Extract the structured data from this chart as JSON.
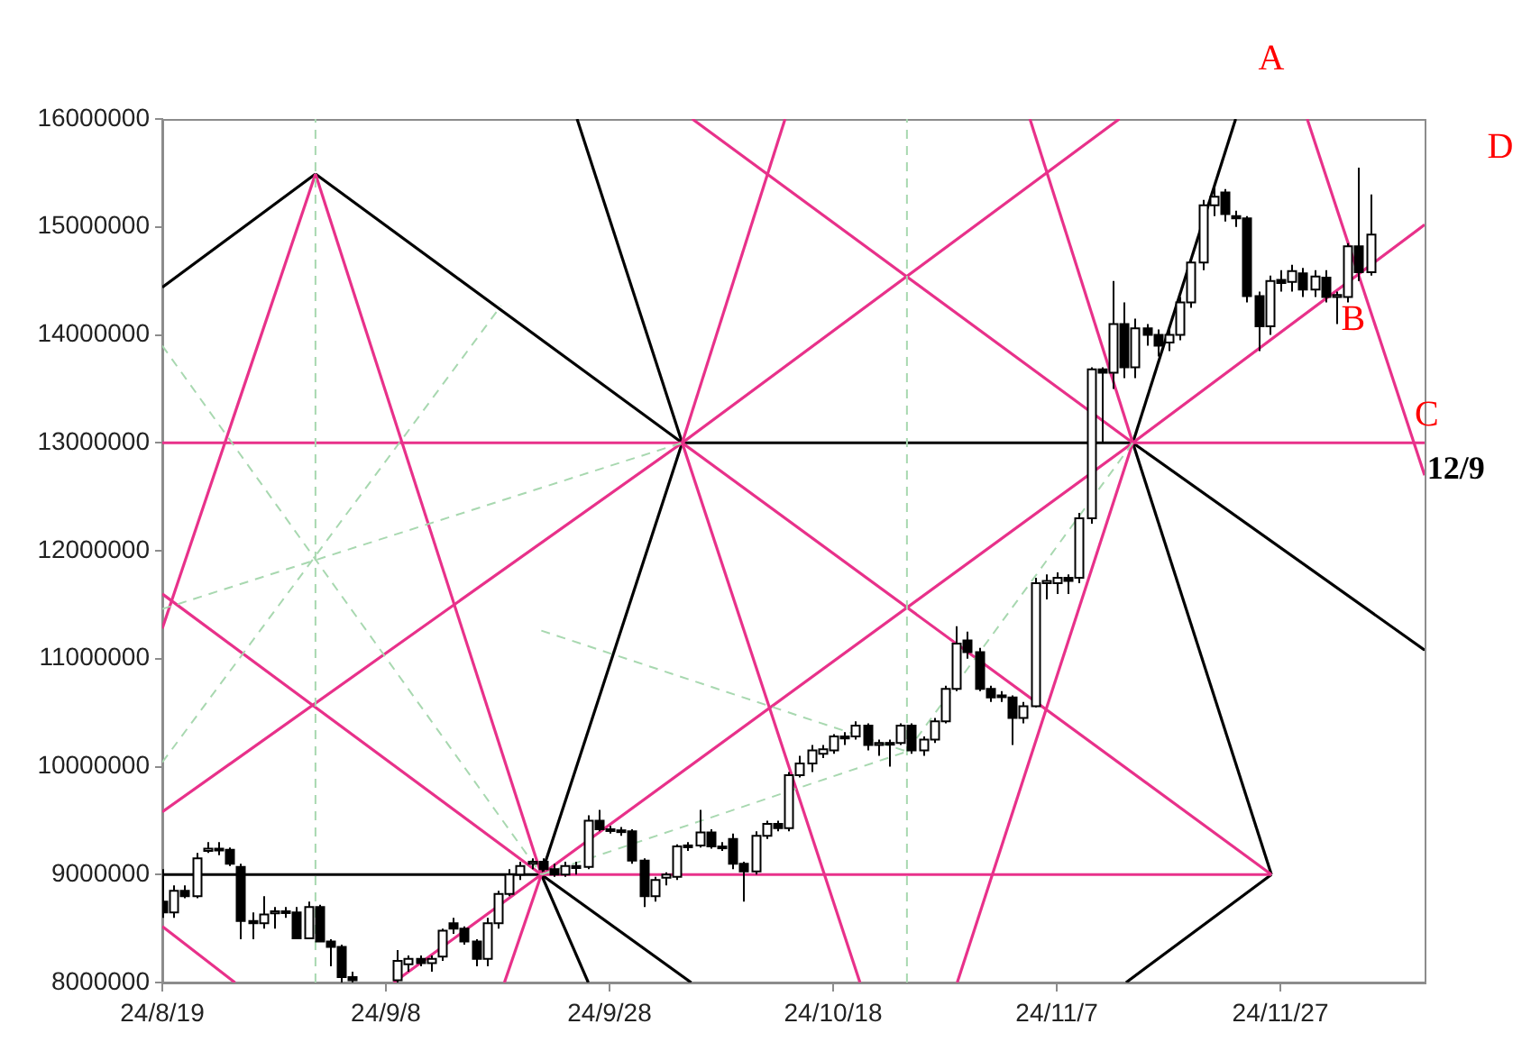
{
  "chart_data": {
    "type": "candlestick",
    "x": [
      "--08-19",
      "--08-20",
      "--08-21",
      "--08-22",
      "--08-23",
      "--08-24",
      "--08-25",
      "--08-26",
      "--08-27",
      "--08-28",
      "--08-29",
      "--08-30",
      "--08-31",
      "--09-01",
      "--09-02",
      "--09-03",
      "--09-04",
      "--09-05",
      "--09-09",
      "--09-10",
      "--09-11",
      "--09-12",
      "--09-13",
      "--09-14",
      "--09-15",
      "--09-16",
      "--09-17",
      "--09-18",
      "--09-19",
      "--09-20",
      "--09-21",
      "--09-22",
      "--09-23",
      "--09-24",
      "--09-25",
      "--09-26",
      "--09-27",
      "--09-28",
      "--09-29",
      "--09-30",
      "--10-01",
      "--10-02",
      "--10-03",
      "--10-04",
      "--10-05",
      "--10-06",
      "--10-07",
      "--10-08",
      "--10-09",
      "--10-10",
      "--10-11",
      "--10-12",
      "--10-13",
      "--10-14",
      "--10-15",
      "--10-16",
      "--10-17",
      "--10-18",
      "--10-19",
      "--10-20",
      "--10-21",
      "--10-22",
      "--10-23",
      "--10-24",
      "--10-25",
      "--10-26",
      "--10-27",
      "--10-28",
      "--10-29",
      "--10-30",
      "--10-31",
      "--11-01",
      "--11-02",
      "--11-03",
      "--11-04",
      "--11-05",
      "--11-06",
      "--11-07",
      "--11-08",
      "--11-09",
      "--11-10",
      "--11-11",
      "--11-12",
      "--11-13",
      "--11-14",
      "--11-15",
      "--11-16",
      "--11-17",
      "--11-18",
      "--11-19",
      "--11-20",
      "--11-21",
      "--11-22",
      "--11-23",
      "--11-24",
      "--11-25",
      "--11-26",
      "--11-27",
      "--11-28",
      "--11-29",
      "--11-30",
      "--12-01",
      "--12-02",
      "--12-03",
      "--12-04",
      "--12-05"
    ],
    "ohlc": [
      [
        8750000,
        9050000,
        8600000,
        8650000
      ],
      [
        8650000,
        8900000,
        8600000,
        8850000
      ],
      [
        8850000,
        8900000,
        8780000,
        8800000
      ],
      [
        8800000,
        9200000,
        8780000,
        9150000
      ],
      [
        9220000,
        9300000,
        9200000,
        9240000
      ],
      [
        9240000,
        9300000,
        9180000,
        9230000
      ],
      [
        9230000,
        9250000,
        9080000,
        9100000
      ],
      [
        9070000,
        9100000,
        8400000,
        8570000
      ],
      [
        8570000,
        8650000,
        8400000,
        8550000
      ],
      [
        8550000,
        8800000,
        8500000,
        8630000
      ],
      [
        8640000,
        8700000,
        8500000,
        8660000
      ],
      [
        8660000,
        8700000,
        8600000,
        8650000
      ],
      [
        8650000,
        8700000,
        8400000,
        8410000
      ],
      [
        8410000,
        8750000,
        8400000,
        8700000
      ],
      [
        8700000,
        8720000,
        8380000,
        8380000
      ],
      [
        8380000,
        8400000,
        8150000,
        8330000
      ],
      [
        8330000,
        8350000,
        8000000,
        8050000
      ],
      [
        8050000,
        8100000,
        8000000,
        8020000
      ],
      [
        8020000,
        8300000,
        8000000,
        8200000
      ],
      [
        8170000,
        8250000,
        8100000,
        8220000
      ],
      [
        8220000,
        8250000,
        8150000,
        8180000
      ],
      [
        8180000,
        8250000,
        8100000,
        8220000
      ],
      [
        8240000,
        8500000,
        8200000,
        8480000
      ],
      [
        8550000,
        8600000,
        8450000,
        8500000
      ],
      [
        8500000,
        8520000,
        8350000,
        8380000
      ],
      [
        8380000,
        8400000,
        8150000,
        8220000
      ],
      [
        8220000,
        8600000,
        8150000,
        8550000
      ],
      [
        8550000,
        8850000,
        8500000,
        8820000
      ],
      [
        8820000,
        9050000,
        8800000,
        9000000
      ],
      [
        9000000,
        9120000,
        8950000,
        9080000
      ],
      [
        9100000,
        9150000,
        9050000,
        9120000
      ],
      [
        9120000,
        9150000,
        9030000,
        9050000
      ],
      [
        9050000,
        9100000,
        8980000,
        9000000
      ],
      [
        9000000,
        9120000,
        8980000,
        9080000
      ],
      [
        9080000,
        9120000,
        9000000,
        9060000
      ],
      [
        9070000,
        9550000,
        9050000,
        9500000
      ],
      [
        9500000,
        9600000,
        9400000,
        9420000
      ],
      [
        9420000,
        9450000,
        9380000,
        9420000
      ],
      [
        9410000,
        9440000,
        9360000,
        9400000
      ],
      [
        9400000,
        9420000,
        9100000,
        9130000
      ],
      [
        9130000,
        9150000,
        8700000,
        8800000
      ],
      [
        8800000,
        8980000,
        8750000,
        8950000
      ],
      [
        8970000,
        9020000,
        8900000,
        9000000
      ],
      [
        8980000,
        9280000,
        8950000,
        9260000
      ],
      [
        9260000,
        9300000,
        9220000,
        9270000
      ],
      [
        9270000,
        9600000,
        9250000,
        9390000
      ],
      [
        9390000,
        9420000,
        9240000,
        9260000
      ],
      [
        9260000,
        9300000,
        9220000,
        9260000
      ],
      [
        9330000,
        9380000,
        9050000,
        9100000
      ],
      [
        9100000,
        9120000,
        8750000,
        9030000
      ],
      [
        9030000,
        9400000,
        9000000,
        9360000
      ],
      [
        9360000,
        9500000,
        9330000,
        9470000
      ],
      [
        9470000,
        9500000,
        9400000,
        9430000
      ],
      [
        9430000,
        9950000,
        9400000,
        9920000
      ],
      [
        9920000,
        10100000,
        9900000,
        10030000
      ],
      [
        10030000,
        10200000,
        9950000,
        10150000
      ],
      [
        10120000,
        10200000,
        10080000,
        10160000
      ],
      [
        10150000,
        10300000,
        10120000,
        10280000
      ],
      [
        10280000,
        10320000,
        10200000,
        10260000
      ],
      [
        10280000,
        10420000,
        10250000,
        10380000
      ],
      [
        10380000,
        10400000,
        10150000,
        10200000
      ],
      [
        10200000,
        10250000,
        10100000,
        10220000
      ],
      [
        10220000,
        10250000,
        10000000,
        10220000
      ],
      [
        10220000,
        10400000,
        10200000,
        10380000
      ],
      [
        10380000,
        10400000,
        10120000,
        10150000
      ],
      [
        10150000,
        10280000,
        10100000,
        10250000
      ],
      [
        10250000,
        10450000,
        10220000,
        10420000
      ],
      [
        10420000,
        10750000,
        10400000,
        10720000
      ],
      [
        10720000,
        11300000,
        10700000,
        11140000
      ],
      [
        11170000,
        11250000,
        11000000,
        11060000
      ],
      [
        11060000,
        11100000,
        10700000,
        10720000
      ],
      [
        10720000,
        10750000,
        10600000,
        10640000
      ],
      [
        10660000,
        10700000,
        10600000,
        10650000
      ],
      [
        10640000,
        10660000,
        10200000,
        10450000
      ],
      [
        10450000,
        10600000,
        10400000,
        10560000
      ],
      [
        10560000,
        11750000,
        10550000,
        11700000
      ],
      [
        11700000,
        11780000,
        11550000,
        11720000
      ],
      [
        11700000,
        11800000,
        11600000,
        11750000
      ],
      [
        11750000,
        11780000,
        11600000,
        11720000
      ],
      [
        11750000,
        12350000,
        11700000,
        12300000
      ],
      [
        12300000,
        13700000,
        12250000,
        13680000
      ],
      [
        13680000,
        13700000,
        13000000,
        13650000
      ],
      [
        13650000,
        14500000,
        13500000,
        14100000
      ],
      [
        14100000,
        14300000,
        13600000,
        13700000
      ],
      [
        13700000,
        14150000,
        13600000,
        14060000
      ],
      [
        14060000,
        14100000,
        13900000,
        14000000
      ],
      [
        14000000,
        14050000,
        13800000,
        13900000
      ],
      [
        13930000,
        14050000,
        13850000,
        14000000
      ],
      [
        14000000,
        14350000,
        13950000,
        14300000
      ],
      [
        14300000,
        14700000,
        14250000,
        14670000
      ],
      [
        14670000,
        15250000,
        14600000,
        15200000
      ],
      [
        15200000,
        15400000,
        15100000,
        15280000
      ],
      [
        15320000,
        15350000,
        15050000,
        15120000
      ],
      [
        15100000,
        15150000,
        15000000,
        15080000
      ],
      [
        15080000,
        15100000,
        14300000,
        14360000
      ],
      [
        14360000,
        14400000,
        13850000,
        14080000
      ],
      [
        14080000,
        14550000,
        14000000,
        14500000
      ],
      [
        14510000,
        14600000,
        14400000,
        14480000
      ],
      [
        14490000,
        14650000,
        14400000,
        14590000
      ],
      [
        14570000,
        14620000,
        14350000,
        14420000
      ],
      [
        14420000,
        14600000,
        14350000,
        14540000
      ],
      [
        14530000,
        14600000,
        14300000,
        14350000
      ],
      [
        14350000,
        14400000,
        14100000,
        14370000
      ],
      [
        14350000,
        14850000,
        14300000,
        14820000
      ],
      [
        14820000,
        15550000,
        14500000,
        14580000
      ],
      [
        14580000,
        15300000,
        14550000,
        14930000
      ]
    ],
    "xlim": [
      "--08-19",
      "--12-09T21:36"
    ],
    "ylim": [
      8000000,
      16000000
    ],
    "xticks": [
      {
        "value": "--08-19",
        "label": "24/8/19"
      },
      {
        "value": "--09-08",
        "label": "24/9/8"
      },
      {
        "value": "--09-28",
        "label": "24/9/28"
      },
      {
        "value": "--10-18",
        "label": "24/10/18"
      },
      {
        "value": "--11-07",
        "label": "24/11/7"
      },
      {
        "value": "--11-27",
        "label": "24/11/27"
      }
    ],
    "yticks": [
      8000000,
      9000000,
      10000000,
      11000000,
      12000000,
      13000000,
      14000000,
      15000000,
      16000000
    ],
    "series": [
      {
        "type": "line",
        "color": "#a8d8b0",
        "line_style": "dashed",
        "x": [
          "--09-01T16:48",
          "--09-01T16:48"
        ],
        "values": [
          8000000,
          16000000
        ]
      },
      {
        "type": "line",
        "color": "#a8d8b0",
        "line_style": "dashed",
        "x": [
          "--10-24T14:24",
          "--10-24T14:24"
        ],
        "values": [
          8000000,
          16000000
        ]
      },
      {
        "type": "line",
        "color": "#a8d8b0",
        "line_style": "dashed",
        "x": [
          "--08-19",
          "--10-04T12:00"
        ],
        "values": [
          11460000,
          13000000
        ]
      },
      {
        "type": "line",
        "color": "#a8d8b0",
        "line_style": "dashed",
        "x": [
          "--08-19",
          "--09-21T21:36"
        ],
        "values": [
          13900000,
          9000000
        ]
      },
      {
        "type": "line",
        "color": "#a8d8b0",
        "line_style": "dashed",
        "x": [
          "--08-19",
          "--09-18T07:12"
        ],
        "values": [
          10040000,
          14270000
        ]
      },
      {
        "type": "line",
        "color": "#a8d8b0",
        "line_style": "dashed",
        "x": [
          "--09-21T21:36",
          "--10-24T14:24"
        ],
        "values": [
          11260000,
          10140000
        ]
      },
      {
        "type": "line",
        "color": "#a8d8b0",
        "line_style": "dashed",
        "x": [
          "--09-21T21:36",
          "--10-24T14:24"
        ],
        "values": [
          9000000,
          10140000
        ]
      },
      {
        "type": "line",
        "color": "#a8d8b0",
        "line_style": "dashed",
        "x": [
          "--10-24T14:24",
          "--11-13T19:12"
        ],
        "values": [
          10140000,
          13000000
        ]
      },
      {
        "type": "line",
        "color": "#e8318a",
        "x": [
          "--08-19",
          "--09-01T16:48"
        ],
        "values": [
          11280000,
          15490000
        ]
      },
      {
        "type": "line",
        "color": "#e8318a",
        "x": [
          "--09-01T16:48",
          "--09-21T21:36"
        ],
        "values": [
          15490000,
          9000000
        ]
      },
      {
        "type": "line",
        "color": "#e8318a",
        "x": [
          "--08-19",
          "--10-04T12:00",
          "--10-24T14:24",
          "--11-13T19:12",
          "--12-09T21:36"
        ],
        "values": [
          13000000,
          13000000,
          null,
          13000000,
          13000000
        ]
      },
      {
        "type": "line",
        "color": "#e8318a",
        "x": [
          "--09-21T21:36",
          "--11-26T04:48"
        ],
        "values": [
          9000000,
          9000000
        ]
      },
      {
        "type": "line",
        "color": "#e8318a",
        "x": [
          "--08-19",
          "--09-21T21:36"
        ],
        "values": [
          11600000,
          9000000
        ]
      },
      {
        "type": "line",
        "color": "#e8318a",
        "x": [
          "--08-19",
          "--10-04T12:00",
          "--11-12T14:24"
        ],
        "values": [
          9580000,
          13000000,
          16000000
        ]
      },
      {
        "type": "line",
        "color": "#e8318a",
        "x": [
          "--09-08T16:48",
          "--09-21T21:36",
          "--11-13T19:12",
          "--12-09T21:36"
        ],
        "values": [
          8000000,
          9000000,
          13000000,
          15020000
        ]
      },
      {
        "type": "line",
        "color": "#e8318a",
        "x": [
          "--08-19",
          "--08-25T12:00"
        ],
        "values": [
          8520000,
          8000000
        ]
      },
      {
        "type": "line",
        "color": "#e8318a",
        "x": [
          "--10-05T09:36",
          "--11-13T19:12"
        ],
        "values": [
          16000000,
          13000000
        ]
      },
      {
        "type": "line",
        "color": "#e8318a",
        "x": [
          "--11-29T09:36",
          "--12-09T21:36"
        ],
        "values": [
          16000000,
          12700000
        ]
      },
      {
        "type": "line",
        "color": "#e8318a",
        "x": [
          "--11-04T14:24",
          "--11-13T19:12"
        ],
        "values": [
          16000000,
          13000000
        ]
      },
      {
        "type": "line",
        "color": "#e8318a",
        "x": [
          "--10-29T02:24",
          "--11-13T19:12"
        ],
        "values": [
          8000000,
          13000000
        ]
      },
      {
        "type": "line",
        "color": "#e8318a",
        "x": [
          "--10-04T12:00",
          "--10-20T09:36"
        ],
        "values": [
          13000000,
          8000000
        ]
      },
      {
        "type": "line",
        "color": "#e8318a",
        "x": [
          "--10-04T12:00",
          "--10-13T16:48"
        ],
        "values": [
          13000000,
          16000000
        ]
      },
      {
        "type": "line",
        "color": "#e8318a",
        "x": [
          "--10-04T12:00",
          "--11-26T04:48"
        ],
        "values": [
          13000000,
          9000000
        ]
      },
      {
        "type": "line",
        "color": "#e8318a",
        "x": [
          "--09-21T21:36",
          "--09-18T14:24"
        ],
        "values": [
          9000000,
          8000000
        ]
      },
      {
        "type": "line",
        "color": "#000000",
        "x": [
          "--08-19",
          "--09-01T16:48"
        ],
        "values": [
          14440000,
          15490000
        ]
      },
      {
        "type": "line",
        "color": "#000000",
        "x": [
          "--09-01T16:48",
          "--10-04T12:00"
        ],
        "values": [
          15490000,
          13000000
        ]
      },
      {
        "type": "line",
        "color": "#000000",
        "x": [
          "--08-19",
          "--09-21T21:36"
        ],
        "values": [
          9000000,
          9000000
        ]
      },
      {
        "type": "line",
        "color": "#000000",
        "x": [
          "--09-25T02:24",
          "--10-04T12:00"
        ],
        "values": [
          16000000,
          13000000
        ]
      },
      {
        "type": "line",
        "color": "#000000",
        "x": [
          "--10-04T12:00",
          "--09-21T21:36"
        ],
        "values": [
          13000000,
          9000000
        ]
      },
      {
        "type": "line",
        "color": "#000000",
        "x": [
          "--09-21T21:36",
          "--09-26T02:24"
        ],
        "values": [
          9000000,
          8000000
        ]
      },
      {
        "type": "line",
        "color": "#000000",
        "x": [
          "--09-21T21:36",
          "--10-05T07:12"
        ],
        "values": [
          9000000,
          8000000
        ]
      },
      {
        "type": "line",
        "color": "#000000",
        "x": [
          "--10-04T12:00",
          "--11-13T19:12"
        ],
        "values": [
          13000000,
          13000000
        ]
      },
      {
        "type": "line",
        "color": "#000000",
        "x": [
          "--11-13T19:12",
          "--11-23"
        ],
        "values": [
          13000000,
          16000000
        ]
      },
      {
        "type": "line",
        "color": "#000000",
        "x": [
          "--11-13T19:12",
          "--11-26T04:48"
        ],
        "values": [
          13000000,
          9000000
        ]
      },
      {
        "type": "line",
        "color": "#000000",
        "x": [
          "--11-13T19:12",
          "--12-09T21:36"
        ],
        "values": [
          13000000,
          11080000
        ]
      },
      {
        "type": "line",
        "color": "#000000",
        "x": [
          "--11-26T04:48",
          "--11-13T04:48"
        ],
        "values": [
          9000000,
          8000000
        ]
      }
    ],
    "annotations": [
      "A",
      "D",
      {
        "text": "B",
        "x": "--12-04",
        "y": 14570000
      },
      {
        "text": "C",
        "x": "--12-08T19:12",
        "y": 13000000
      },
      {
        "text": "12/9",
        "x": "--12-09",
        "y": 13000000
      }
    ]
  }
}
